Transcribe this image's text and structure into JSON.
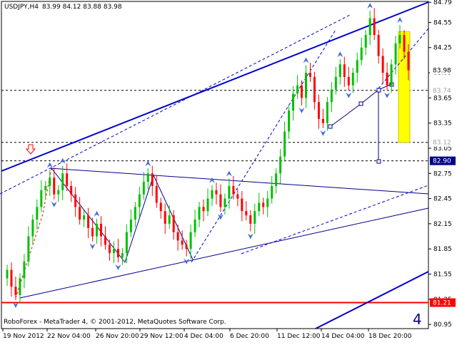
{
  "header": {
    "symbol_timeframe": "USDJPY,H4",
    "ohlc": "83.99 84.12 83.88 83.98"
  },
  "watermark": "RoboForex - MetaTrader 4, © 2001-2012, MetaQuotes Software Corp.",
  "panel_number": "4",
  "colors": {
    "bull": "#00c000",
    "bear": "#ff0000",
    "trend_blue": "#0000ff",
    "navy": "#000080",
    "target_zone": "#ffff00",
    "support_red": "#ff0000",
    "price_tag": "#00008b",
    "grid": "#c0c0c0"
  },
  "chart_data": {
    "type": "candlestick",
    "title": "USDJPY,H4",
    "ylim": [
      80.9,
      84.8
    ],
    "y_ticks": [
      "84.79",
      "84.55",
      "84.25",
      "83.95",
      "83.65",
      "83.35",
      "83.05",
      "82.75",
      "82.45",
      "82.15",
      "81.85",
      "81.55",
      "81.25",
      "80.95"
    ],
    "x_ticks": [
      "19 Nov 2012",
      "22 Nov 04:00",
      "26 Nov 20:00",
      "29 Nov 12:00",
      "4 Dec 04:00",
      "6 Dec 20:00",
      "11 Dec 12:00",
      "14 Dec 04:00",
      "18 Dec 20:00"
    ],
    "price_labels": [
      {
        "value": 83.98,
        "text": "83.98",
        "style": "current"
      },
      {
        "value": 83.74,
        "text": "83.74",
        "style": "level"
      },
      {
        "value": 83.12,
        "text": "83.12",
        "style": "level"
      },
      {
        "value": 82.9,
        "text": "82.90",
        "style": "tag"
      },
      {
        "value": 81.21,
        "text": "81.21",
        "style": "red"
      }
    ],
    "current_price": 83.98,
    "horizontal_levels": [
      83.74,
      83.12,
      82.9
    ],
    "support_level": 81.21,
    "target_zone": {
      "from": 83.12,
      "to": 84.44
    },
    "close_path": [
      81.6,
      81.4,
      81.3,
      81.5,
      81.7,
      82.0,
      82.2,
      82.35,
      82.55,
      82.6,
      82.7,
      82.5,
      82.55,
      82.75,
      82.6,
      82.5,
      82.35,
      82.2,
      82.25,
      82.1,
      82.0,
      82.15,
      82.0,
      81.9,
      81.8,
      81.85,
      81.75,
      81.8,
      82.05,
      82.2,
      82.35,
      82.5,
      82.65,
      82.75,
      82.6,
      82.4,
      82.3,
      82.15,
      82.25,
      82.05,
      81.95,
      81.9,
      81.85,
      82.05,
      82.2,
      82.35,
      82.3,
      82.45,
      82.55,
      82.5,
      82.35,
      82.45,
      82.6,
      82.5,
      82.45,
      82.3,
      82.25,
      82.15,
      82.3,
      82.4,
      82.35,
      82.45,
      82.6,
      82.75,
      82.95,
      83.25,
      83.5,
      83.7,
      83.8,
      83.65,
      83.95,
      83.9,
      83.6,
      83.4,
      83.35,
      83.6,
      83.75,
      83.9,
      84.05,
      83.9,
      83.8,
      83.95,
      84.1,
      84.25,
      84.4,
      84.6,
      84.4,
      84.15,
      83.95,
      83.8,
      84.05,
      84.3,
      84.4,
      84.2,
      83.98
    ]
  }
}
